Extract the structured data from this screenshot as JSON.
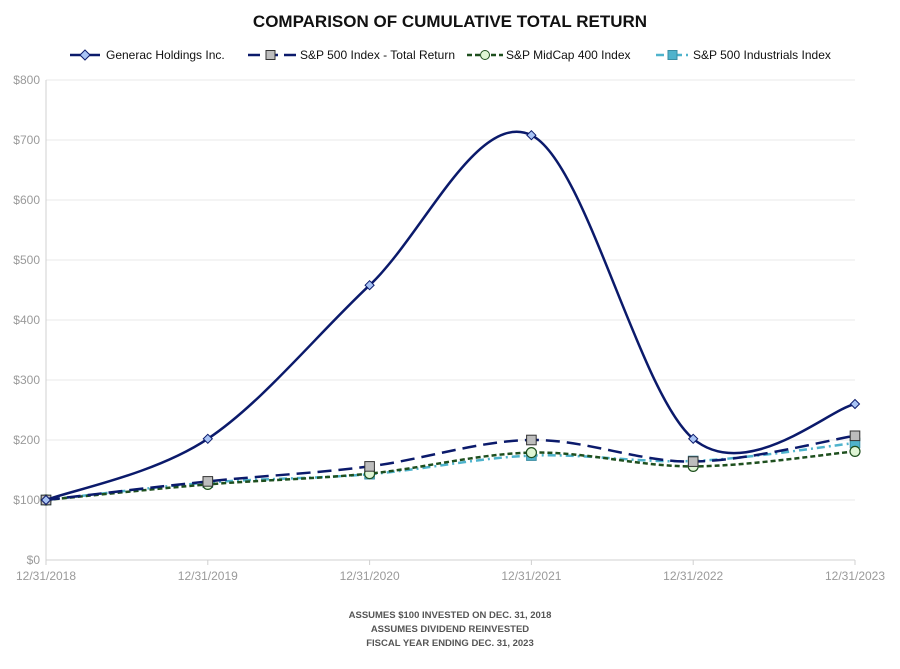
{
  "chart_data": {
    "type": "line",
    "title": "COMPARISON OF CUMULATIVE TOTAL RETURN",
    "xlabel": "",
    "ylabel": "",
    "x": [
      "12/31/2018",
      "12/31/2019",
      "12/31/2020",
      "12/31/2021",
      "12/31/2022",
      "12/31/2023"
    ],
    "ylim": [
      0,
      800
    ],
    "yticks": [
      {
        "value": 0,
        "label": "$0"
      },
      {
        "value": 100,
        "label": "$100"
      },
      {
        "value": 200,
        "label": "$200"
      },
      {
        "value": 300,
        "label": "$300"
      },
      {
        "value": 400,
        "label": "$400"
      },
      {
        "value": 500,
        "label": "$500"
      },
      {
        "value": 600,
        "label": "$600"
      },
      {
        "value": 700,
        "label": "$700"
      },
      {
        "value": 800,
        "label": "$800"
      }
    ],
    "grid": true,
    "legend": "top",
    "series": [
      {
        "name": "Generac Holdings Inc.",
        "values": [
          100,
          202,
          458,
          708,
          202,
          260
        ],
        "color": "#0b1a6b",
        "dash": "solid",
        "marker": "diamond",
        "marker_fill": "#a9c4f5"
      },
      {
        "name": "S&P 500 Index - Total Return",
        "values": [
          100,
          131,
          156,
          200,
          164,
          207
        ],
        "color": "#0b1a6b",
        "dash": "long-dash",
        "marker": "square",
        "marker_fill": "#bdbdbd"
      },
      {
        "name": "S&P MidCap 400 Index",
        "values": [
          100,
          126,
          144,
          179,
          156,
          181
        ],
        "color": "#1e4f1e",
        "dash": "short-dash",
        "marker": "circle",
        "marker_fill": "#dff5d5"
      },
      {
        "name": "S&P 500 Industrials Index",
        "values": [
          100,
          129,
          143,
          174,
          165,
          195
        ],
        "color": "#4fb3cc",
        "dash": "dash-dot",
        "marker": "square",
        "marker_fill": "#4fb3cc"
      }
    ],
    "footnotes": [
      "ASSUMES $100 INVESTED ON DEC. 31, 2018",
      "ASSUMES DIVIDEND REINVESTED",
      "FISCAL YEAR ENDING DEC. 31, 2023"
    ]
  }
}
